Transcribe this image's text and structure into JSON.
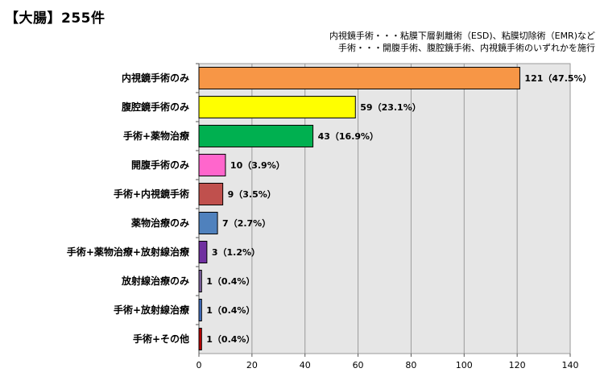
{
  "title": "【大腸】255件",
  "notes": [
    "内視鏡手術・・・粘膜下層剝離術（ESD)、粘膜切除術（EMR)など",
    "手術・・・開腹手術、腹腔鏡手術、内視鏡手術のいずれかを施行"
  ],
  "chart_data": {
    "type": "bar",
    "orientation": "horizontal",
    "title": "【大腸】255件",
    "categories": [
      "内視鏡手術のみ",
      "腹腔鏡手術のみ",
      "手術+薬物治療",
      "開腹手術のみ",
      "手術+内視鏡手術",
      "薬物治療のみ",
      "手術+薬物治療+放射線治療",
      "放射線治療のみ",
      "手術+放射線治療",
      "手術+その他"
    ],
    "values": [
      121,
      59,
      43,
      10,
      9,
      7,
      3,
      1,
      1,
      1
    ],
    "data_labels": [
      "121（47.5%）",
      "59（23.1%）",
      "43（16.9%）",
      "10（3.9%）",
      "9（3.5%）",
      "7（2.7%）",
      "3（1.2%）",
      "1（0.4%）",
      "1（0.4%）",
      "1（0.4%）"
    ],
    "colors": [
      "#F79646",
      "#FFFF00",
      "#00B050",
      "#FF66CC",
      "#C0504D",
      "#4F81BD",
      "#7030A0",
      "#8064A2",
      "#4472C4",
      "#C00000"
    ],
    "xlim": [
      0,
      140
    ],
    "xticks": [
      0,
      20,
      40,
      60,
      80,
      100,
      120,
      140
    ],
    "grid": "vertical",
    "plot_background": "#E6E6E6"
  }
}
